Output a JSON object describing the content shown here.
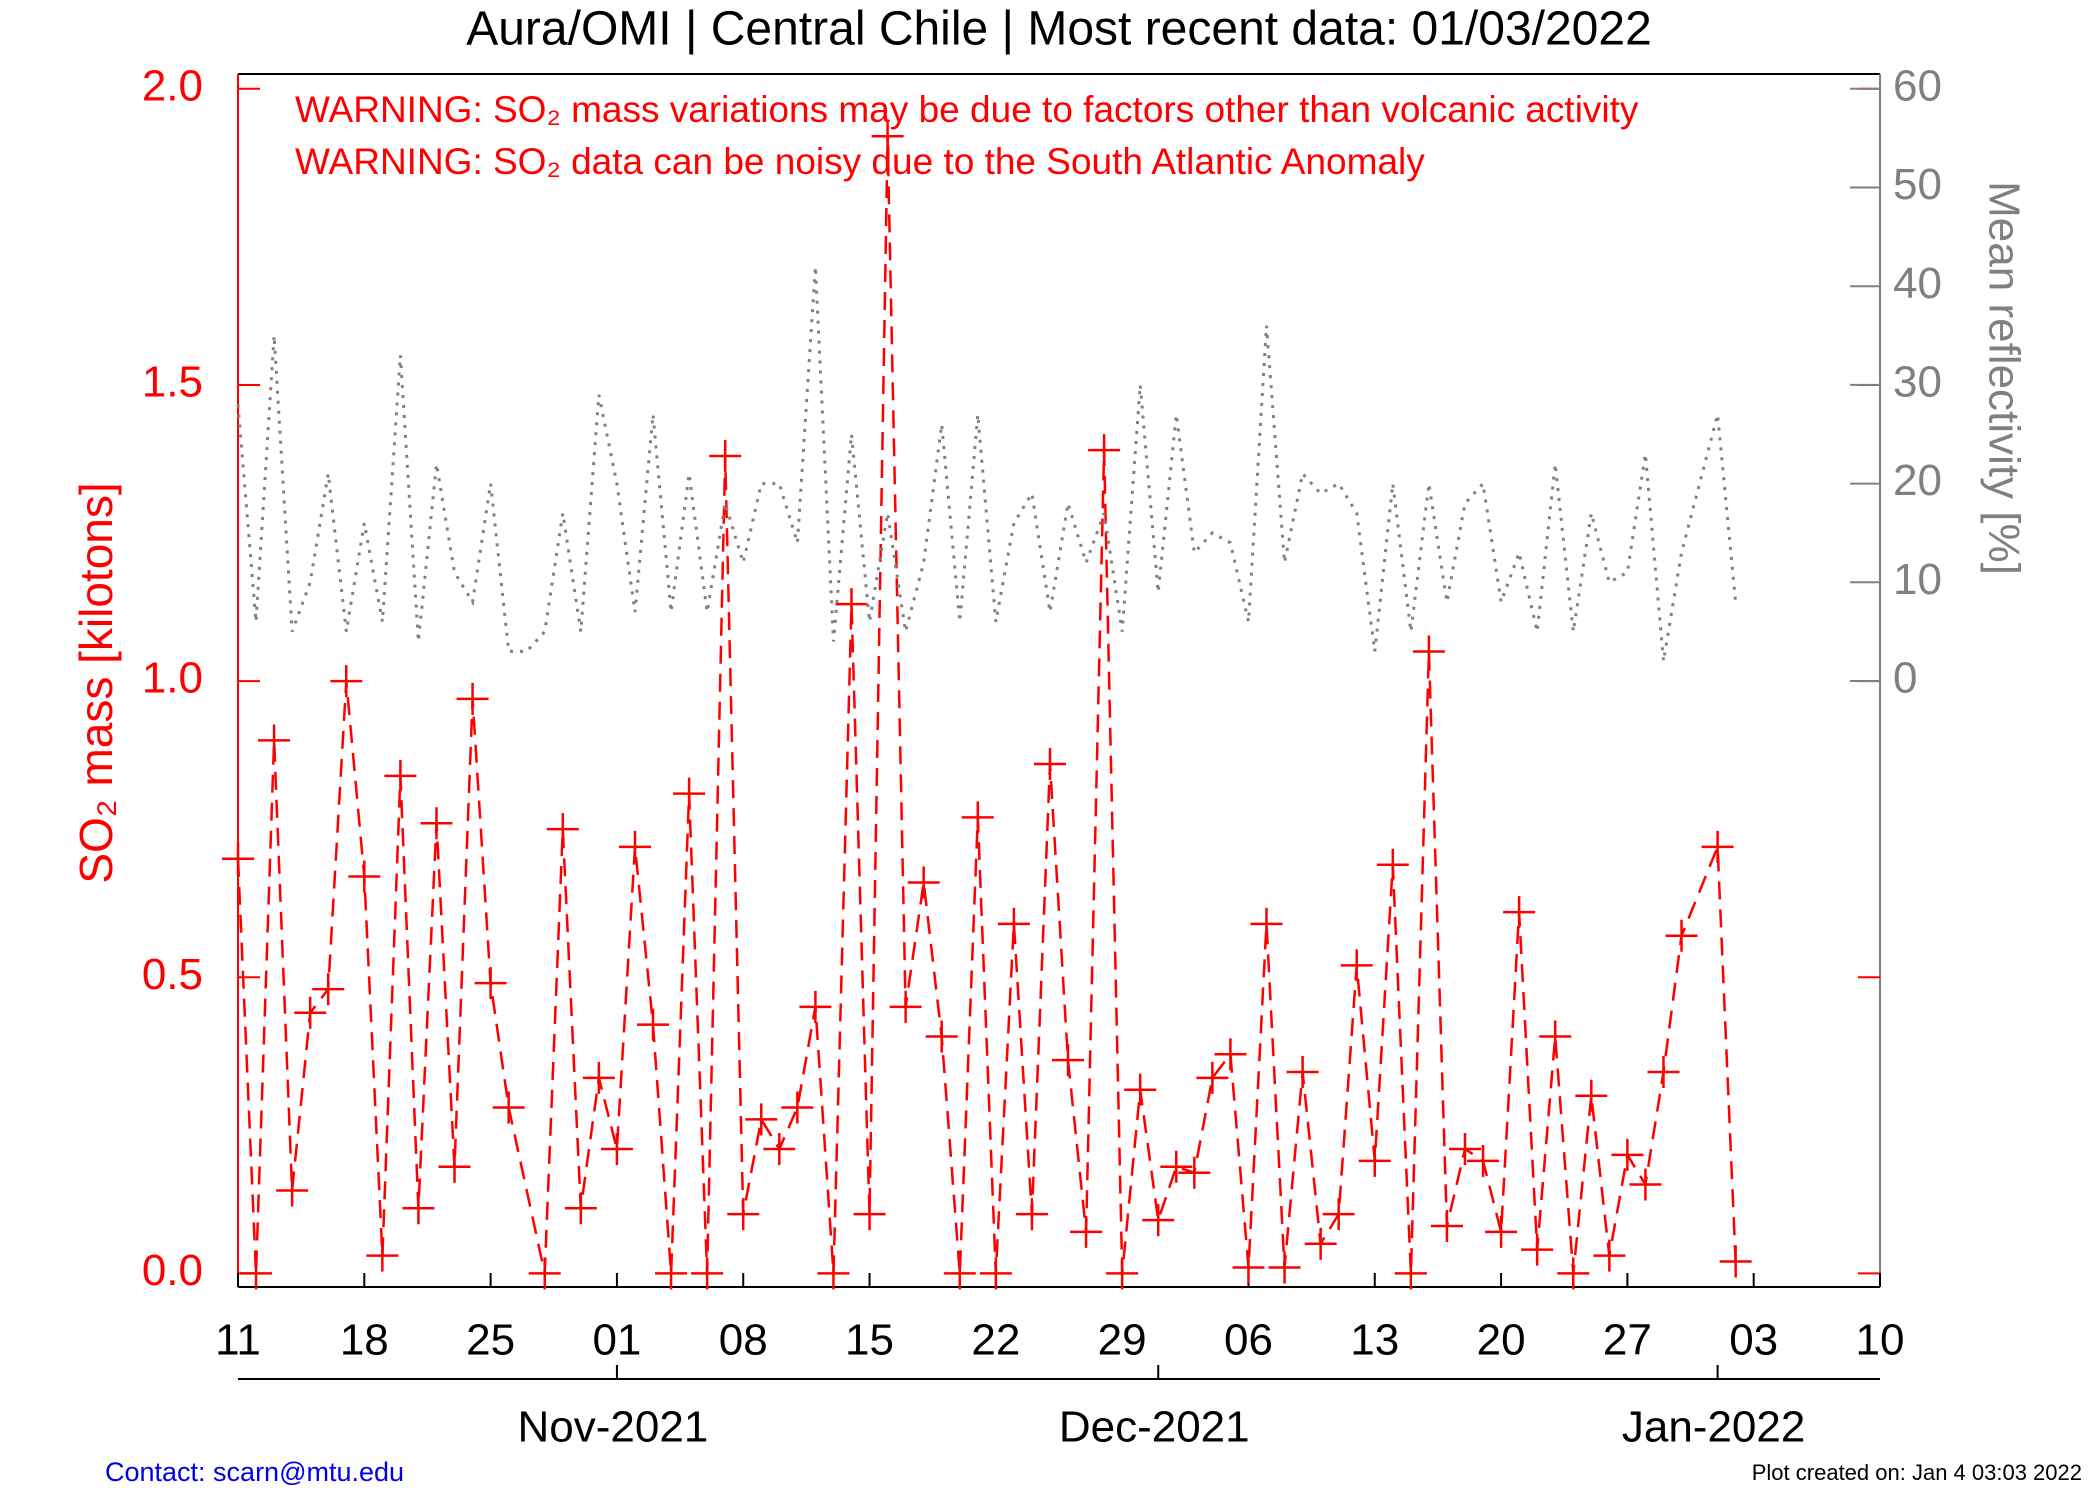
{
  "chart_data": {
    "type": "line",
    "title": "Aura/OMI | Central Chile | Most recent data: 01/03/2022",
    "annotations": [
      "WARNING: SO₂ mass variations may be due to factors other than volcanic activity",
      "WARNING: SO₂ data can be noisy due to the South Atlantic Anomaly"
    ],
    "ylabel": "SO₂ mass [kilotons]",
    "y2label": "Mean reflectivity [%]",
    "footer_left": "Contact: scarn@mtu.edu",
    "footer_right": "Plot created on: Jan  4 03:03 2022",
    "xlim": [
      "2021-10-11",
      "2022-01-10"
    ],
    "xticks": [
      {
        "value": "2021-10-11",
        "label": "11"
      },
      {
        "value": "2021-10-18",
        "label": "18"
      },
      {
        "value": "2021-10-25",
        "label": "25"
      },
      {
        "value": "2021-11-01",
        "label": "01"
      },
      {
        "value": "2021-11-08",
        "label": "08"
      },
      {
        "value": "2021-11-15",
        "label": "15"
      },
      {
        "value": "2021-11-22",
        "label": "22"
      },
      {
        "value": "2021-11-29",
        "label": "29"
      },
      {
        "value": "2021-12-06",
        "label": "06"
      },
      {
        "value": "2021-12-13",
        "label": "13"
      },
      {
        "value": "2021-12-20",
        "label": "20"
      },
      {
        "value": "2021-12-27",
        "label": "27"
      },
      {
        "value": "2022-01-03",
        "label": "03"
      },
      {
        "value": "2022-01-10",
        "label": "10"
      }
    ],
    "month_ticks": [
      {
        "value": "2021-11-01",
        "label": "Nov-2021"
      },
      {
        "value": "2021-12-01",
        "label": "Dec-2021"
      },
      {
        "value": "2022-01-01",
        "label": "Jan-2022"
      }
    ],
    "ylim": [
      -0.023,
      2.025
    ],
    "yticks": [
      {
        "value": 0,
        "label": "0.0"
      },
      0.5,
      {
        "value": 1,
        "label": "1.0"
      },
      1.5,
      {
        "value": 2,
        "label": "2.0"
      }
    ],
    "y2lim": [
      -61.4,
      61.5
    ],
    "y2ticks": [
      0,
      10,
      20,
      30,
      40,
      50,
      60
    ],
    "series": [
      {
        "name": "SO₂ mass",
        "color": "#ff0000",
        "marker": "plus",
        "dashed": true,
        "x": [
          "2021-10-11",
          "2021-10-12",
          "2021-10-13",
          "2021-10-14",
          "2021-10-15",
          "2021-10-16",
          "2021-10-17",
          "2021-10-18",
          "2021-10-19",
          "2021-10-20",
          "2021-10-21",
          "2021-10-22",
          "2021-10-23",
          "2021-10-24",
          "2021-10-25",
          "2021-10-26",
          "2021-10-28",
          "2021-10-29",
          "2021-10-30",
          "2021-10-31",
          "2021-11-01",
          "2021-11-02",
          "2021-11-03",
          "2021-11-04",
          "2021-11-05",
          "2021-11-06",
          "2021-11-07",
          "2021-11-08",
          "2021-11-09",
          "2021-11-10",
          "2021-11-11",
          "2021-11-12",
          "2021-11-13",
          "2021-11-14",
          "2021-11-15",
          "2021-11-16",
          "2021-11-17",
          "2021-11-18",
          "2021-11-19",
          "2021-11-20",
          "2021-11-21",
          "2021-11-22",
          "2021-11-23",
          "2021-11-24",
          "2021-11-25",
          "2021-11-26",
          "2021-11-27",
          "2021-11-28",
          "2021-11-29",
          "2021-11-30",
          "2021-12-01",
          "2021-12-02",
          "2021-12-03",
          "2021-12-04",
          "2021-12-05",
          "2021-12-06",
          "2021-12-07",
          "2021-12-08",
          "2021-12-09",
          "2021-12-10",
          "2021-12-11",
          "2021-12-12",
          "2021-12-13",
          "2021-12-14",
          "2021-12-15",
          "2021-12-16",
          "2021-12-17",
          "2021-12-18",
          "2021-12-19",
          "2021-12-20",
          "2021-12-21",
          "2021-12-22",
          "2021-12-23",
          "2021-12-24",
          "2021-12-25",
          "2021-12-26",
          "2021-12-27",
          "2021-12-28",
          "2021-12-29",
          "2021-12-30",
          "2022-01-01",
          "2022-01-02"
        ],
        "values": [
          0.7,
          0.0,
          0.9,
          0.14,
          0.44,
          0.48,
          1.0,
          0.67,
          0.03,
          0.84,
          0.11,
          0.76,
          0.18,
          0.97,
          0.49,
          0.28,
          0.0,
          0.75,
          0.11,
          0.33,
          0.21,
          0.72,
          0.42,
          0.0,
          0.81,
          0.0,
          1.38,
          0.1,
          0.26,
          0.21,
          0.28,
          0.45,
          0.0,
          1.13,
          0.1,
          1.92,
          0.45,
          0.66,
          0.4,
          0.0,
          0.77,
          0.0,
          0.59,
          0.1,
          0.86,
          0.36,
          0.07,
          1.39,
          0.0,
          0.31,
          0.09,
          0.18,
          0.17,
          0.33,
          0.37,
          0.01,
          0.59,
          0.01,
          0.34,
          0.05,
          0.1,
          0.52,
          0.19,
          0.69,
          0.0,
          1.05,
          0.08,
          0.21,
          0.19,
          0.07,
          0.61,
          0.04,
          0.4,
          0.0,
          0.3,
          0.03,
          0.2,
          0.15,
          0.34,
          0.57,
          0.72,
          0.02
        ]
      },
      {
        "name": "Mean reflectivity",
        "color": "#808080",
        "axis": "y2",
        "dotted": true,
        "x": [
          "2021-10-11",
          "2021-10-12",
          "2021-10-13",
          "2021-10-14",
          "2021-10-15",
          "2021-10-16",
          "2021-10-17",
          "2021-10-18",
          "2021-10-19",
          "2021-10-20",
          "2021-10-21",
          "2021-10-22",
          "2021-10-23",
          "2021-10-24",
          "2021-10-25",
          "2021-10-26",
          "2021-10-27",
          "2021-10-28",
          "2021-10-29",
          "2021-10-30",
          "2021-10-31",
          "2021-11-01",
          "2021-11-02",
          "2021-11-03",
          "2021-11-04",
          "2021-11-05",
          "2021-11-06",
          "2021-11-07",
          "2021-11-08",
          "2021-11-09",
          "2021-11-10",
          "2021-11-11",
          "2021-11-12",
          "2021-11-13",
          "2021-11-14",
          "2021-11-15",
          "2021-11-16",
          "2021-11-17",
          "2021-11-18",
          "2021-11-19",
          "2021-11-20",
          "2021-11-21",
          "2021-11-22",
          "2021-11-23",
          "2021-11-24",
          "2021-11-25",
          "2021-11-26",
          "2021-11-27",
          "2021-11-28",
          "2021-11-29",
          "2021-11-30",
          "2021-12-01",
          "2021-12-02",
          "2021-12-03",
          "2021-12-04",
          "2021-12-05",
          "2021-12-06",
          "2021-12-07",
          "2021-12-08",
          "2021-12-09",
          "2021-12-10",
          "2021-12-11",
          "2021-12-12",
          "2021-12-13",
          "2021-12-14",
          "2021-12-15",
          "2021-12-16",
          "2021-12-17",
          "2021-12-18",
          "2021-12-19",
          "2021-12-20",
          "2021-12-21",
          "2021-12-22",
          "2021-12-23",
          "2021-12-24",
          "2021-12-25",
          "2021-12-26",
          "2021-12-27",
          "2021-12-28",
          "2021-12-29",
          "2021-12-30",
          "2021-12-31",
          "2022-01-01",
          "2022-01-02"
        ],
        "values": [
          28,
          6,
          35,
          5,
          10,
          21,
          5,
          16,
          6,
          33,
          4,
          22,
          11,
          8,
          20,
          3,
          3,
          5,
          17,
          5,
          29,
          20,
          7,
          27,
          7,
          21,
          7,
          18,
          12,
          20,
          20,
          14,
          42,
          4,
          25,
          6,
          17,
          5,
          12,
          26,
          6,
          27,
          6,
          16,
          19,
          7,
          18,
          12,
          17,
          5,
          30,
          9,
          27,
          13,
          15,
          14,
          6,
          36,
          12,
          21,
          19,
          20,
          17,
          3,
          20,
          5,
          20,
          8,
          18,
          20,
          8,
          13,
          5,
          22,
          5,
          17,
          10,
          11,
          23,
          2,
          13,
          20,
          27,
          8
        ]
      }
    ]
  }
}
